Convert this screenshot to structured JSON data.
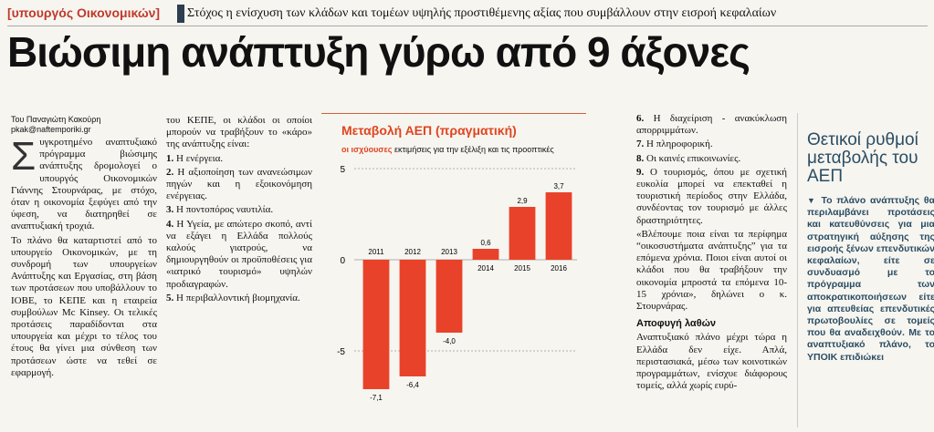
{
  "header": {
    "section_tag": "[υπουργός Οικονομικών]",
    "subtitle": "Στόχος η ενίσχυση των κλάδων και τομέων υψηλής προστιθέμενης αξίας που συμβάλλουν στην εισροή κεφαλαίων",
    "headline": "Βιώσιμη ανάπτυξη γύρω από 9 άξονες"
  },
  "byline": {
    "author": "Του Παναγιώτη Κακούρη",
    "email": "pkak@naftemporiki.gr"
  },
  "col1": {
    "dropcap": "Σ",
    "p1": "υγκροτημένο αναπτυξιακό πρόγραμμα βιώσιμης ανάπτυξης δρομολογεί ο υπουργός Οικονομικών Γιάννης Στουρνάρας, με στόχο, όταν η οικονομία ξεφύγει από την ύφεση, να διατηρηθεί σε αναπτυξιακή τροχιά.",
    "p2": "Το πλάνο θα καταρτιστεί από το υπουργείο Οικονομικών, με τη συνδρομή των υπουργείων Ανάπτυξης και Εργασίας, στη βάση των προτάσεων που υποβάλλουν το ΙΟΒΕ, το ΚΕΠΕ και η εταιρεία συμβούλων Mc Kinsey. Οι τελικές προτάσεις παραδίδονται στα υπουργεία και μέχρι το τέλος του έτους θα γίνει μια σύνθεση των προτάσεων ώστε να τεθεί σε εφαρμογή."
  },
  "col2": {
    "intro": "του ΚΕΠΕ, οι κλάδοι οι οποίοι μπορούν να τραβήξουν το «κάρο» της ανάπτυξης είναι:",
    "items": [
      {
        "num": "1.",
        "text": "Η ενέργεια."
      },
      {
        "num": "2.",
        "text": "Η αξιοποίηση των ανανεώσιμων πηγών και η εξοικονόμηση ενέργειας."
      },
      {
        "num": "3.",
        "text": "Η ποντοπόρος ναυτιλία."
      },
      {
        "num": "4.",
        "text": "Η Υγεία, με απώτερο σκοπό, αντί να εξάγει η Ελλάδα πολλούς καλούς γιατρούς, να δημιουργηθούν οι προϋποθέσεις για «ιατρικό τουρισμό» υψηλών προδιαγραφών."
      },
      {
        "num": "5.",
        "text": "Η περιβαλλοντική βιομηχανία."
      }
    ]
  },
  "col3": {
    "items": [
      {
        "num": "6.",
        "text": "Η διαχείριση - ανακύκλωση απορριμμάτων."
      },
      {
        "num": "7.",
        "text": "Η πληροφορική."
      },
      {
        "num": "8.",
        "text": "Οι καινές επικοινωνίες."
      },
      {
        "num": "9.",
        "text": "Ο τουρισμός, όπου με σχετική ευκολία μπορεί να επεκταθεί η τουριστική περίοδος στην Ελλάδα, συνδέοντας τον τουρισμό με άλλες δραστηριότητες."
      }
    ],
    "quote": "«Βλέπουμε ποια είναι τα περίφημα “οικοσυστήματα ανάπτυξης” για τα επόμενα χρόνια. Ποιοι είναι αυτοί οι κλάδοι που θα τραβήξουν την οικονομία μπροστά τα επόμενα 10-15 χρόνια», δηλώνει ο κ. Στουρνάρας.",
    "subhead": "Αποφυγή λαθών",
    "p_last": "Αναπτυξιακό πλάνο μέχρι τώρα η Ελλάδα δεν είχε. Απλά, περιστασιακά, μέσω των κοινοτικών προγραμμάτων, ενίσχυε διάφορους τομείς, αλλά χωρίς ευρύ-"
  },
  "chart": {
    "title": "Μεταβολή ΑΕΠ (πραγματική)",
    "sub_bold": "οι ισχύουσες",
    "sub_rest": "εκτιμήσεις για την εξέλιξη και τις προοπτικές"
  },
  "chart_data": {
    "type": "bar",
    "title": "Μεταβολή ΑΕΠ (πραγματική)",
    "categories": [
      "2011",
      "2012",
      "2013",
      "2014",
      "2015",
      "2016"
    ],
    "values": [
      -7.1,
      -6.4,
      -4.0,
      0.6,
      2.9,
      3.7
    ],
    "value_labels": [
      "-7,1",
      "-6,4",
      "-4,0",
      "0,6",
      "2,9",
      "3,7"
    ],
    "y_ticks": [
      5,
      0,
      -5
    ],
    "ylim": [
      -8,
      5
    ],
    "bar_color": "#e8432a",
    "grid": true
  },
  "sidebar": {
    "title": "Θετικοί ρυθμοί μεταβολής του ΑΕΠ",
    "marker": "▼",
    "body": "Το πλάνο ανάπτυξης θα περιλαμβάνει προτάσεις και κατευθύνσεις για μια στρατηγική αύξησης της εισροής ξένων επενδυτικών κεφαλαίων, είτε σε συνδυασμό με το πρόγραμμα των αποκρατικοποιήσεων είτε για απευθείας επενδυτικές πρωτοβουλίες σε τομείς που θα αναδειχθούν. Με το αναπτυξιακό πλάνο, το ΥΠΟΙΚ επιδιώκει"
  }
}
